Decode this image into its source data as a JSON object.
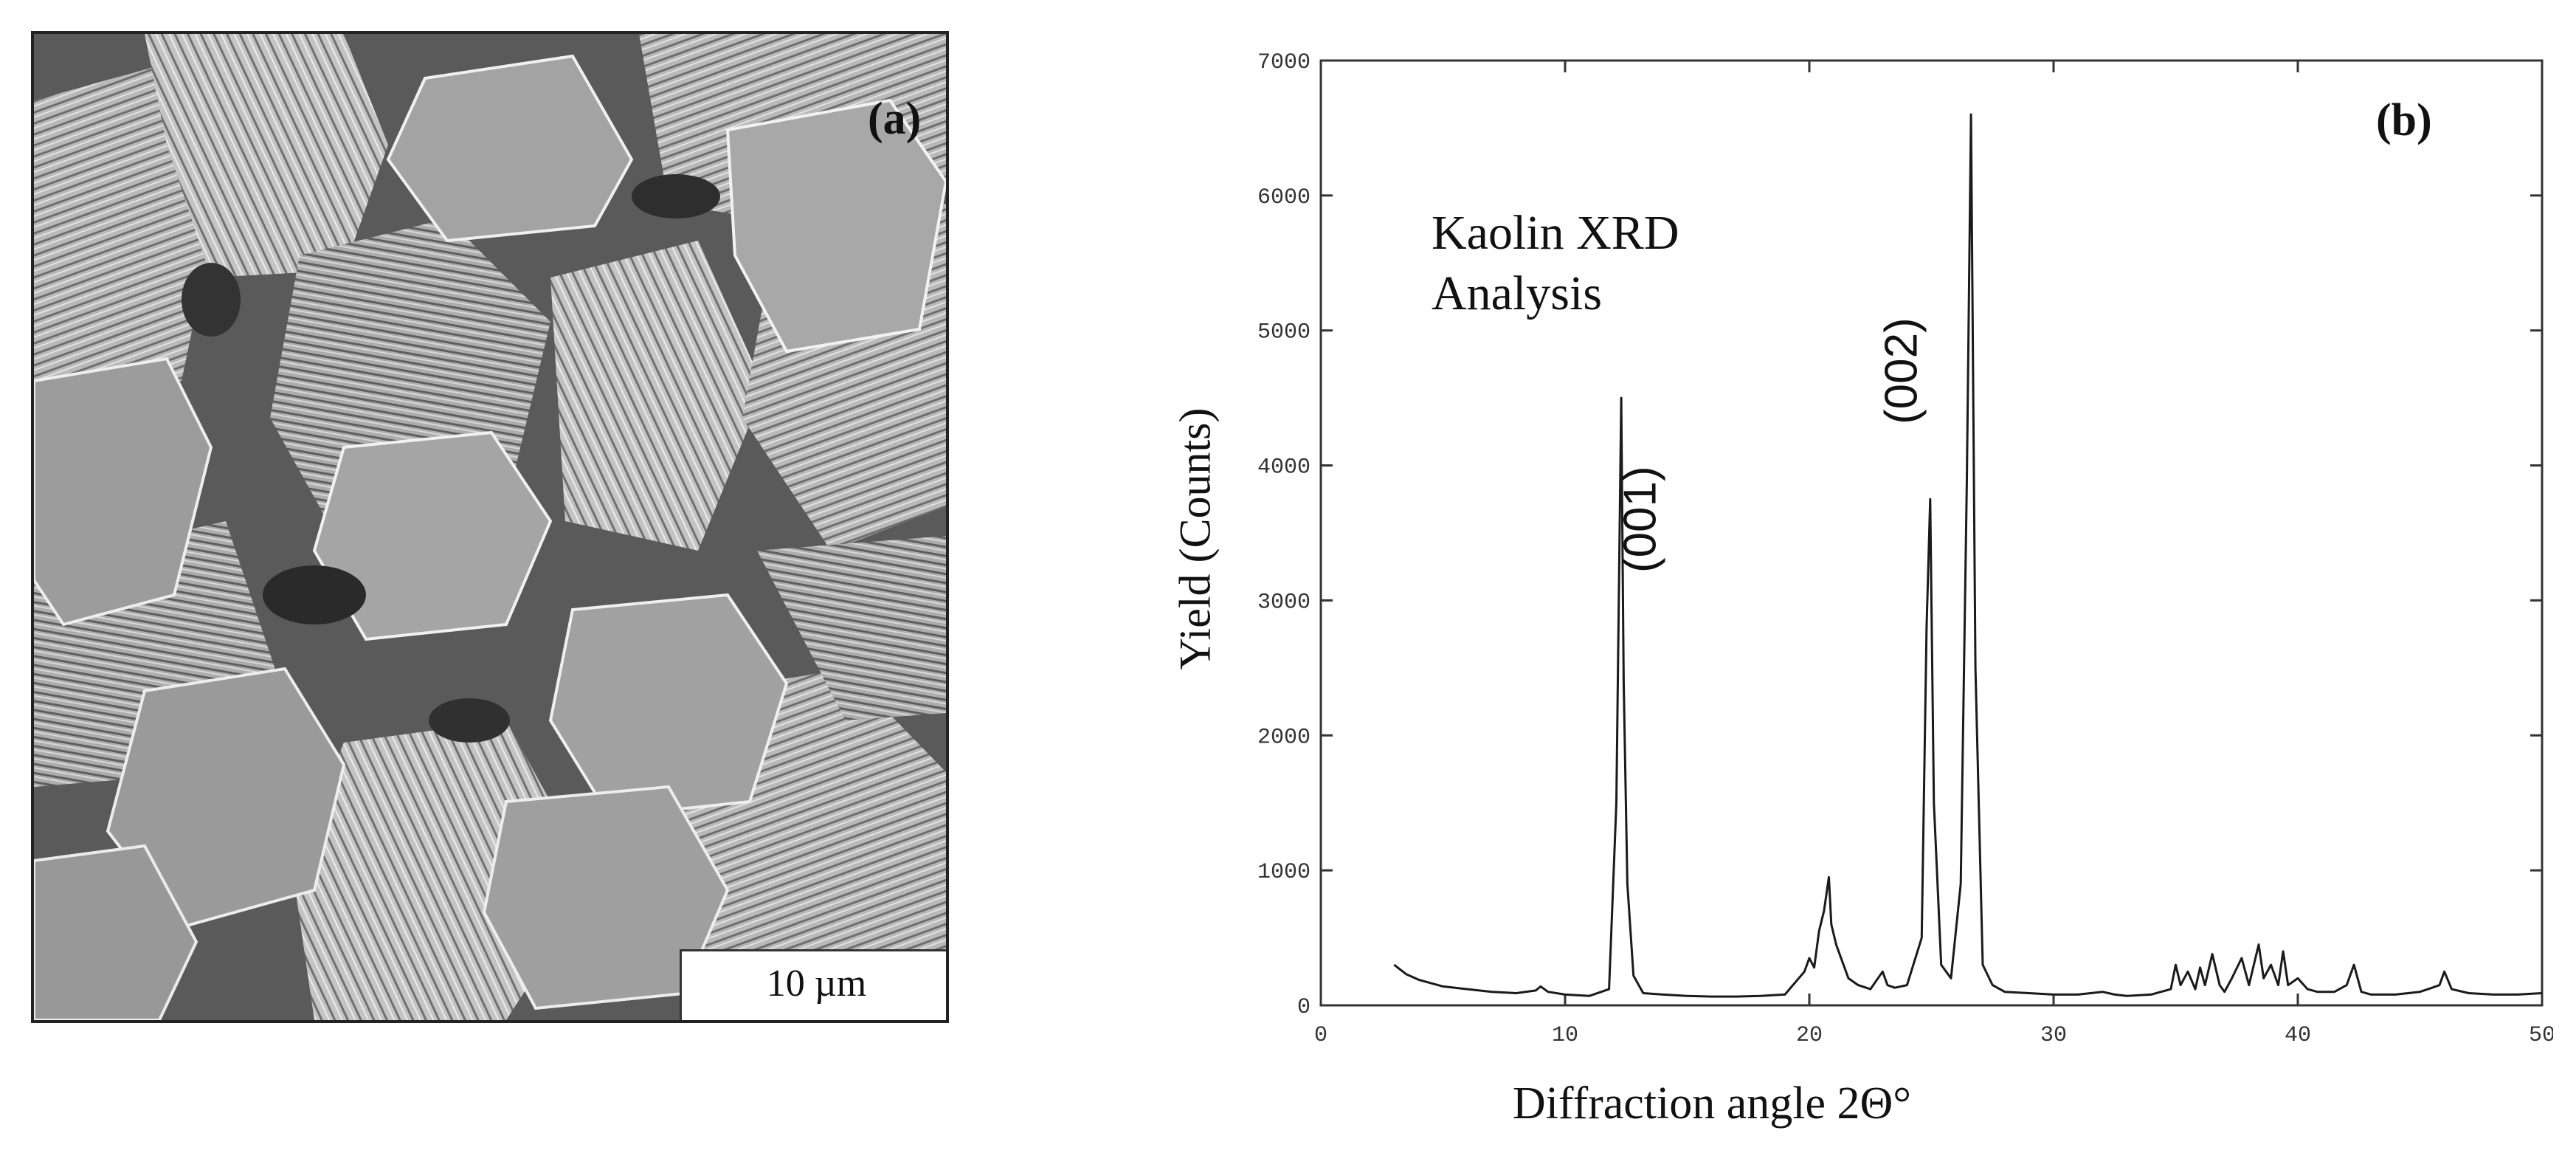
{
  "panel_a": {
    "label": "(a)",
    "scale_bar_text": "10 µm"
  },
  "panel_b": {
    "label": "(b)"
  },
  "colors": {
    "line": "#1a1a1a",
    "axis": "#333333",
    "sem_base": "#8a8a8a"
  },
  "chart_data": {
    "type": "line",
    "title": "Kaolin XRD\nAnalysis",
    "xlabel": "Diffraction angle 2Θ°",
    "ylabel": "Yield (Counts)",
    "xlim": [
      0,
      50
    ],
    "ylim": [
      0,
      7000
    ],
    "xticks": [
      0,
      10,
      20,
      30,
      40,
      50
    ],
    "xtick_labels": [
      "0",
      "10",
      "20",
      "30",
      "40",
      "50"
    ],
    "yticks": [
      0,
      1000,
      2000,
      3000,
      4000,
      5000,
      6000,
      7000
    ],
    "ytick_labels": [
      "0",
      "1000",
      "2000",
      "3000",
      "4000",
      "5000",
      "6000",
      "7000"
    ],
    "grid": false,
    "series": [
      {
        "x": [
          3.0,
          3.5,
          4.0,
          5.0,
          6.0,
          7.0,
          8.0,
          8.8,
          9.0,
          9.3,
          10.0,
          11.0,
          11.8,
          12.1,
          12.3,
          12.4,
          12.55,
          12.8,
          13.2,
          14.0,
          15.0,
          16.0,
          17.0,
          18.0,
          19.0,
          19.8,
          20.0,
          20.2,
          20.4,
          20.6,
          20.8,
          20.9,
          21.1,
          21.3,
          21.6,
          22.0,
          22.5,
          23.0,
          23.2,
          23.5,
          24.0,
          24.6,
          24.8,
          24.95,
          25.1,
          25.4,
          25.8,
          26.2,
          26.45,
          26.62,
          26.8,
          27.1,
          27.5,
          28.0,
          29.0,
          30.0,
          31.0,
          32.0,
          32.5,
          33.0,
          34.0,
          34.8,
          35.0,
          35.2,
          35.5,
          35.8,
          36.0,
          36.2,
          36.5,
          36.8,
          37.0,
          37.3,
          37.7,
          38.0,
          38.2,
          38.4,
          38.6,
          38.9,
          39.2,
          39.4,
          39.6,
          40.0,
          40.4,
          40.8,
          41.5,
          42.0,
          42.3,
          42.6,
          43.0,
          44.0,
          45.0,
          45.5,
          45.8,
          46.0,
          46.3,
          47.0,
          48.0,
          49.0,
          50.0
        ],
        "y": [
          300,
          230,
          190,
          140,
          120,
          100,
          90,
          110,
          140,
          100,
          80,
          70,
          120,
          1500,
          4500,
          2400,
          900,
          220,
          90,
          80,
          70,
          65,
          65,
          70,
          80,
          250,
          350,
          280,
          550,
          700,
          950,
          600,
          450,
          350,
          200,
          150,
          120,
          250,
          150,
          130,
          150,
          500,
          2800,
          3750,
          1500,
          300,
          200,
          900,
          3900,
          6600,
          2500,
          300,
          150,
          100,
          90,
          80,
          80,
          100,
          80,
          70,
          80,
          120,
          300,
          150,
          250,
          120,
          280,
          150,
          380,
          150,
          100,
          200,
          350,
          150,
          300,
          450,
          200,
          300,
          150,
          400,
          150,
          200,
          120,
          100,
          100,
          150,
          300,
          100,
          80,
          80,
          100,
          130,
          150,
          250,
          120,
          90,
          80,
          80,
          90
        ]
      }
    ],
    "annotations": [
      {
        "text": "(001)",
        "x": 13.7,
        "y": 3600
      },
      {
        "text": "(002)",
        "x": 24.4,
        "y": 4700
      }
    ]
  }
}
